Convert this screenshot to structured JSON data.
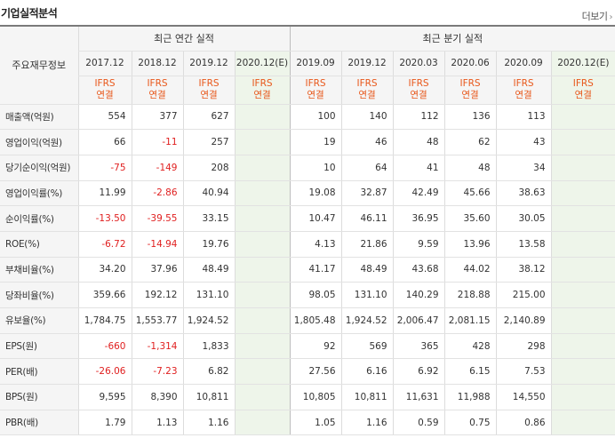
{
  "header": {
    "title": "기업실적분석",
    "more_label": "더보기",
    "more_icon": "chevron-right-icon"
  },
  "table": {
    "row_header_label": "주요재무정보",
    "group_annual": "최근 연간 실적",
    "group_quarterly": "최근 분기 실적",
    "periods": [
      "2017.12",
      "2018.12",
      "2019.12",
      "2020.12(E)",
      "2019.09",
      "2019.12",
      "2020.03",
      "2020.06",
      "2020.09",
      "2020.12(E)"
    ],
    "ifrs": "IFRS",
    "basis": "연결",
    "rows": [
      {
        "label": "매출액(억원)",
        "values": [
          "554",
          "377",
          "627",
          "",
          "100",
          "140",
          "112",
          "136",
          "113",
          ""
        ]
      },
      {
        "label": "영업이익(억원)",
        "values": [
          "66",
          "-11",
          "257",
          "",
          "19",
          "46",
          "48",
          "62",
          "43",
          ""
        ]
      },
      {
        "label": "당기순이익(억원)",
        "values": [
          "-75",
          "-149",
          "208",
          "",
          "10",
          "64",
          "41",
          "48",
          "34",
          ""
        ]
      },
      {
        "label": "영업이익률(%)",
        "values": [
          "11.99",
          "-2.86",
          "40.94",
          "",
          "19.08",
          "32.87",
          "42.49",
          "45.66",
          "38.63",
          ""
        ]
      },
      {
        "label": "순이익률(%)",
        "values": [
          "-13.50",
          "-39.55",
          "33.15",
          "",
          "10.47",
          "46.11",
          "36.95",
          "35.60",
          "30.05",
          ""
        ]
      },
      {
        "label": "ROE(%)",
        "values": [
          "-6.72",
          "-14.94",
          "19.76",
          "",
          "4.13",
          "21.86",
          "9.59",
          "13.96",
          "13.58",
          ""
        ]
      },
      {
        "label": "부채비율(%)",
        "values": [
          "34.20",
          "37.96",
          "48.49",
          "",
          "41.17",
          "48.49",
          "43.68",
          "44.02",
          "38.12",
          ""
        ]
      },
      {
        "label": "당좌비율(%)",
        "values": [
          "359.66",
          "192.12",
          "131.10",
          "",
          "98.05",
          "131.10",
          "140.29",
          "218.88",
          "215.00",
          ""
        ]
      },
      {
        "label": "유보율(%)",
        "values": [
          "1,784.75",
          "1,553.77",
          "1,924.52",
          "",
          "1,805.48",
          "1,924.52",
          "2,006.47",
          "2,081.15",
          "2,140.89",
          ""
        ]
      },
      {
        "label": "EPS(원)",
        "values": [
          "-660",
          "-1,314",
          "1,833",
          "",
          "92",
          "569",
          "365",
          "428",
          "298",
          ""
        ]
      },
      {
        "label": "PER(배)",
        "values": [
          "-26.06",
          "-7.23",
          "6.82",
          "",
          "27.56",
          "6.16",
          "6.92",
          "6.15",
          "7.53",
          ""
        ]
      },
      {
        "label": "BPS(원)",
        "values": [
          "9,595",
          "8,390",
          "10,811",
          "",
          "10,805",
          "10,811",
          "11,631",
          "11,988",
          "14,550",
          ""
        ]
      },
      {
        "label": "PBR(배)",
        "values": [
          "1.79",
          "1.13",
          "1.16",
          "",
          "1.05",
          "1.16",
          "0.59",
          "0.75",
          "0.86",
          ""
        ]
      }
    ]
  },
  "colors": {
    "ifrs": "#e8571a",
    "negative": "#e02020",
    "estimate_bg": "#eef5ea",
    "header_bg": "#f5f5f5"
  }
}
